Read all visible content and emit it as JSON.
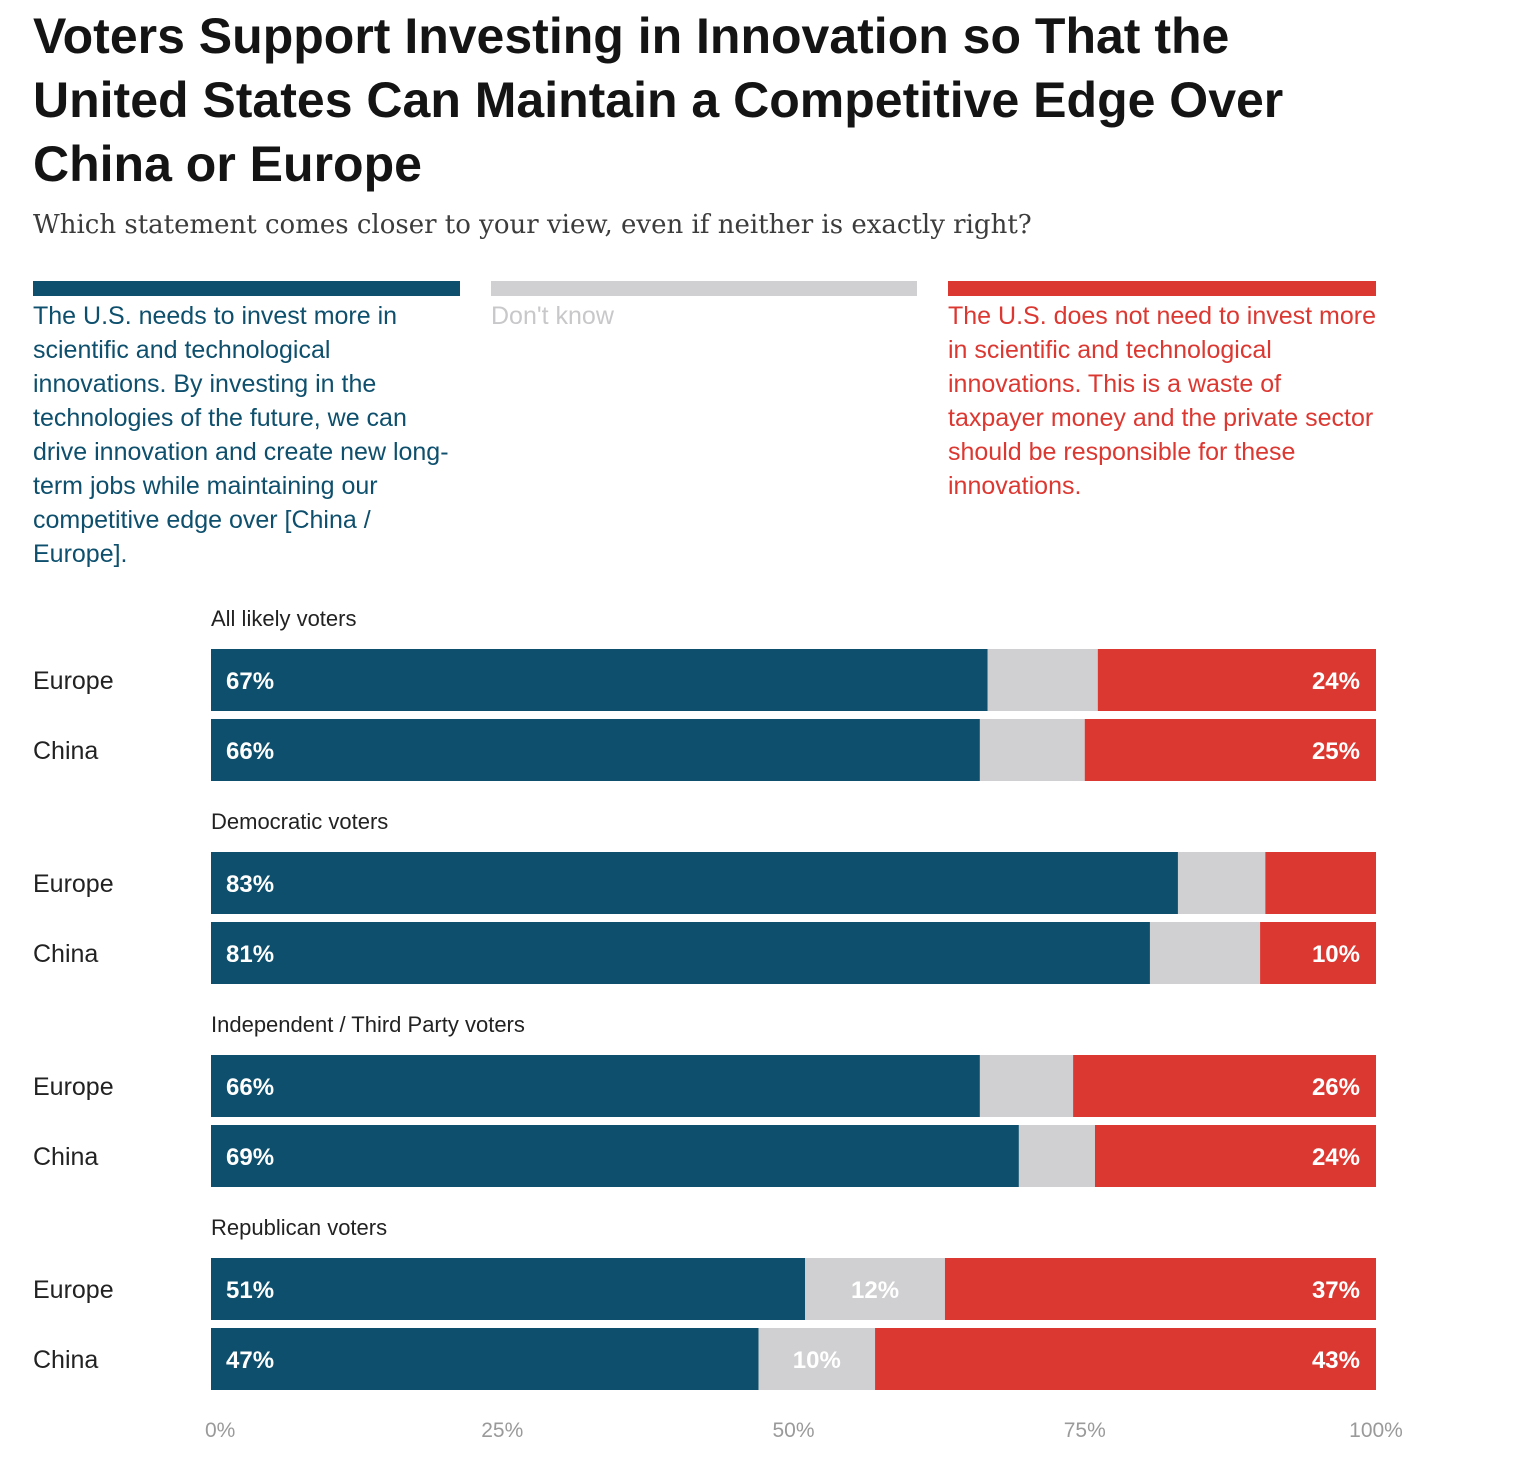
{
  "title": "Voters Support Investing in Innovation so That the United States Can Maintain a Competitive Edge Over China or Europe",
  "subtitle": "Which statement comes closer to your view, even if neither is exactly right?",
  "colors": {
    "invest": "#0d4f6c",
    "dont_know": "#d0d0d2",
    "no_invest": "#dc3832",
    "dont_know_text": "#c8c8ca"
  },
  "legend": {
    "invest": "The U.S. needs to invest more in scientific and technological innovations. By investing in the technologies of the future, we can drive innovation and create new long-term jobs while maintaining our competitive edge over [China / Europe].",
    "dont_know": "Don't know",
    "no_invest": "The U.S. does not need to invest more in scientific and technological innovations. This is a waste of taxpayer money and the private sector should be responsible for these innovations."
  },
  "chart_data": {
    "type": "bar",
    "orientation": "horizontal",
    "stacked": true,
    "xlim": [
      0,
      100
    ],
    "x_ticks": [
      "0%",
      "25%",
      "50%",
      "75%",
      "100%"
    ],
    "series_names": [
      "The U.S. needs to invest more in scientific and technological innovations.",
      "Don't know",
      "The U.S. does not need to invest more in scientific and technological innovations."
    ],
    "groups": [
      {
        "label": "All likely voters",
        "rows": [
          {
            "label": "Europe",
            "values": [
              67,
              9.5,
              24
            ],
            "labels": [
              "67%",
              "",
              "24%"
            ]
          },
          {
            "label": "China",
            "values": [
              66,
              9,
              25
            ],
            "labels": [
              "66%",
              "",
              "25%"
            ]
          }
        ]
      },
      {
        "label": "Democratic voters",
        "rows": [
          {
            "label": "Europe",
            "values": [
              83,
              7.5,
              9.5
            ],
            "labels": [
              "83%",
              "",
              ""
            ]
          },
          {
            "label": "China",
            "values": [
              81,
              9.5,
              10
            ],
            "labels": [
              "81%",
              "",
              "10%"
            ]
          }
        ]
      },
      {
        "label": "Independent / Third Party voters",
        "rows": [
          {
            "label": "Europe",
            "values": [
              66,
              8,
              26
            ],
            "labels": [
              "66%",
              "",
              "26%"
            ]
          },
          {
            "label": "China",
            "values": [
              69,
              6.5,
              24
            ],
            "labels": [
              "69%",
              "",
              "24%"
            ]
          }
        ]
      },
      {
        "label": "Republican voters",
        "rows": [
          {
            "label": "Europe",
            "values": [
              51,
              12,
              37
            ],
            "labels": [
              "51%",
              "12%",
              "37%"
            ]
          },
          {
            "label": "China",
            "values": [
              47,
              10,
              43
            ],
            "labels": [
              "47%",
              "10%",
              "43%"
            ]
          }
        ]
      }
    ]
  }
}
